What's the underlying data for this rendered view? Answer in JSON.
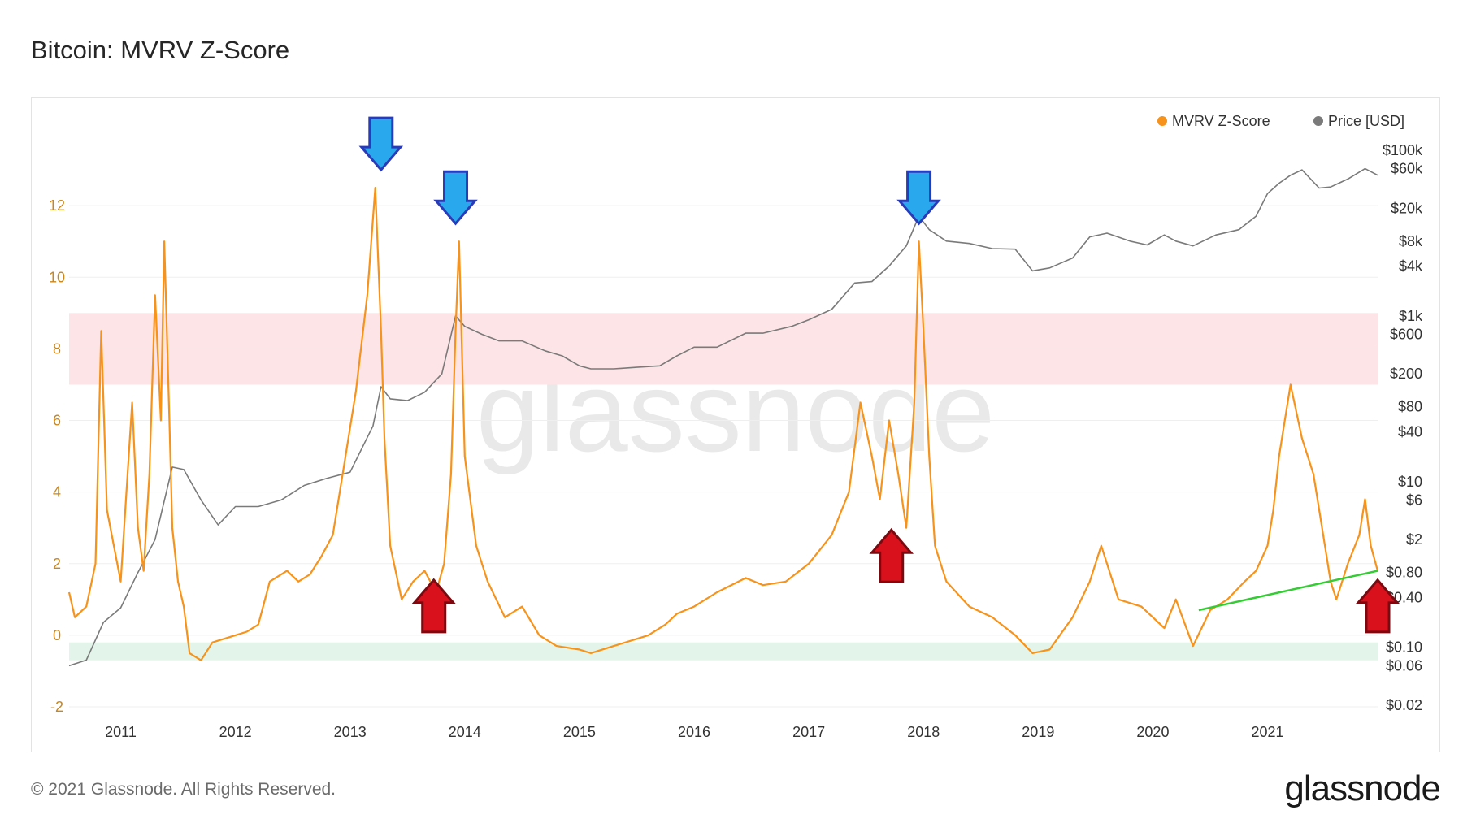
{
  "title": "Bitcoin: MVRV Z-Score",
  "footer": "© 2021 Glassnode. All Rights Reserved.",
  "brand": "glassnode",
  "watermark": "glassnode",
  "colors": {
    "mvrv": "#f7931a",
    "price": "#7a7a7a",
    "trend": "#33cc33",
    "top_zone": "#fde4e6",
    "bottom_zone": "#e3f5ea",
    "arrow_down": "#2aa8ee",
    "arrow_up": "#d9111d"
  },
  "chart_data": {
    "type": "line",
    "legend": {
      "placement": "top-right",
      "items": [
        {
          "label": "MVRV Z-Score",
          "color": "#f7931a"
        },
        {
          "label": "Price [USD]",
          "color": "#7a7a7a"
        }
      ]
    },
    "x_ticks": [
      "2011",
      "2012",
      "2013",
      "2014",
      "2015",
      "2016",
      "2017",
      "2018",
      "2019",
      "2020",
      "2021"
    ],
    "x_range": [
      2010.55,
      2021.96
    ],
    "y_left": {
      "ticks": [
        "-2",
        "0",
        "2",
        "4",
        "6",
        "8",
        "10",
        "12"
      ],
      "ylim": [
        -2,
        14
      ]
    },
    "y_right": {
      "scale": "log",
      "ticks": [
        {
          "label": "$100k",
          "value": 100000
        },
        {
          "label": "$60k",
          "value": 60000
        },
        {
          "label": "$20k",
          "value": 20000
        },
        {
          "label": "$8k",
          "value": 8000
        },
        {
          "label": "$4k",
          "value": 4000
        },
        {
          "label": "$1k",
          "value": 1000
        },
        {
          "label": "$600",
          "value": 600
        },
        {
          "label": "$200",
          "value": 200
        },
        {
          "label": "$80",
          "value": 80
        },
        {
          "label": "$40",
          "value": 40
        },
        {
          "label": "$10",
          "value": 10
        },
        {
          "label": "$6",
          "value": 6
        },
        {
          "label": "$2",
          "value": 2
        },
        {
          "label": "$0.80",
          "value": 0.8
        },
        {
          "label": "$0.40",
          "value": 0.4
        },
        {
          "label": "$0.10",
          "value": 0.1
        },
        {
          "label": "$0.06",
          "value": 0.06
        },
        {
          "label": "$0.02",
          "value": 0.02
        }
      ]
    },
    "zones": [
      {
        "name": "top",
        "y": [
          7,
          9
        ]
      },
      {
        "name": "bottom",
        "y": [
          -0.7,
          -0.2
        ]
      }
    ],
    "series": [
      {
        "name": "MVRV Z-Score",
        "axis": "left",
        "x": [
          2010.55,
          2010.6,
          2010.7,
          2010.78,
          2010.83,
          2010.88,
          2011.0,
          2011.1,
          2011.15,
          2011.2,
          2011.25,
          2011.3,
          2011.35,
          2011.38,
          2011.42,
          2011.45,
          2011.5,
          2011.55,
          2011.6,
          2011.7,
          2011.8,
          2011.9,
          2012.0,
          2012.1,
          2012.2,
          2012.3,
          2012.45,
          2012.55,
          2012.65,
          2012.75,
          2012.85,
          2012.95,
          2013.05,
          2013.15,
          2013.22,
          2013.27,
          2013.3,
          2013.35,
          2013.45,
          2013.55,
          2013.65,
          2013.75,
          2013.82,
          2013.88,
          2013.92,
          2013.95,
          2014.0,
          2014.1,
          2014.2,
          2014.35,
          2014.5,
          2014.65,
          2014.8,
          2015.0,
          2015.1,
          2015.3,
          2015.6,
          2015.75,
          2015.85,
          2016.0,
          2016.2,
          2016.45,
          2016.6,
          2016.8,
          2017.0,
          2017.2,
          2017.35,
          2017.45,
          2017.55,
          2017.62,
          2017.7,
          2017.78,
          2017.85,
          2017.92,
          2017.96,
          2018.0,
          2018.05,
          2018.1,
          2018.2,
          2018.4,
          2018.6,
          2018.8,
          2018.95,
          2019.1,
          2019.3,
          2019.45,
          2019.55,
          2019.7,
          2019.9,
          2020.0,
          2020.1,
          2020.2,
          2020.35,
          2020.5,
          2020.65,
          2020.8,
          2020.9,
          2021.0,
          2021.05,
          2021.1,
          2021.2,
          2021.3,
          2021.4,
          2021.5,
          2021.55,
          2021.6,
          2021.7,
          2021.8,
          2021.85,
          2021.9,
          2021.96
        ],
        "y": [
          1.2,
          0.5,
          0.8,
          2.0,
          8.5,
          3.5,
          1.5,
          6.5,
          3.0,
          1.8,
          4.5,
          9.5,
          6.0,
          11.0,
          6.5,
          3.0,
          1.5,
          0.8,
          -0.5,
          -0.7,
          -0.2,
          -0.1,
          0.0,
          0.1,
          0.3,
          1.5,
          1.8,
          1.5,
          1.7,
          2.2,
          2.8,
          4.8,
          6.8,
          9.5,
          12.5,
          8.5,
          5.5,
          2.5,
          1.0,
          1.5,
          1.8,
          1.2,
          2.0,
          4.5,
          8.5,
          11.0,
          5.0,
          2.5,
          1.5,
          0.5,
          0.8,
          0.0,
          -0.3,
          -0.4,
          -0.5,
          -0.3,
          0.0,
          0.3,
          0.6,
          0.8,
          1.2,
          1.6,
          1.4,
          1.5,
          2.0,
          2.8,
          4.0,
          6.5,
          5.0,
          3.8,
          6.0,
          4.5,
          3.0,
          6.5,
          11.0,
          8.5,
          5.0,
          2.5,
          1.5,
          0.8,
          0.5,
          0.0,
          -0.5,
          -0.4,
          0.5,
          1.5,
          2.5,
          1.0,
          0.8,
          0.5,
          0.2,
          1.0,
          -0.3,
          0.7,
          1.0,
          1.5,
          1.8,
          2.5,
          3.5,
          5.0,
          7.0,
          5.5,
          4.5,
          2.5,
          1.5,
          1.0,
          2.0,
          2.8,
          3.8,
          2.5,
          1.8
        ]
      },
      {
        "name": "Price [USD]",
        "axis": "right",
        "x": [
          2010.55,
          2010.7,
          2010.85,
          2011.0,
          2011.15,
          2011.3,
          2011.45,
          2011.55,
          2011.7,
          2011.85,
          2012.0,
          2012.2,
          2012.4,
          2012.6,
          2012.8,
          2013.0,
          2013.2,
          2013.27,
          2013.35,
          2013.5,
          2013.65,
          2013.8,
          2013.92,
          2014.0,
          2014.15,
          2014.3,
          2014.5,
          2014.7,
          2014.85,
          2015.0,
          2015.1,
          2015.3,
          2015.5,
          2015.7,
          2015.85,
          2016.0,
          2016.2,
          2016.45,
          2016.6,
          2016.85,
          2017.0,
          2017.2,
          2017.4,
          2017.55,
          2017.7,
          2017.85,
          2017.96,
          2018.05,
          2018.2,
          2018.4,
          2018.6,
          2018.8,
          2018.95,
          2019.1,
          2019.3,
          2019.45,
          2019.6,
          2019.8,
          2019.95,
          2020.1,
          2020.2,
          2020.35,
          2020.55,
          2020.75,
          2020.9,
          2021.0,
          2021.1,
          2021.2,
          2021.3,
          2021.45,
          2021.55,
          2021.7,
          2021.85,
          2021.96
        ],
        "y": [
          0.06,
          0.07,
          0.2,
          0.3,
          0.8,
          2.0,
          15,
          14,
          6,
          3,
          5,
          5,
          6,
          9,
          11,
          13,
          47,
          140,
          100,
          95,
          120,
          200,
          1000,
          750,
          600,
          500,
          500,
          380,
          330,
          250,
          230,
          230,
          240,
          250,
          330,
          420,
          420,
          620,
          620,
          750,
          900,
          1200,
          2500,
          2600,
          4000,
          7000,
          16000,
          11000,
          8000,
          7500,
          6500,
          6400,
          3500,
          3800,
          5000,
          9000,
          10000,
          8000,
          7200,
          9500,
          8000,
          7000,
          9500,
          11000,
          16000,
          30000,
          40000,
          50000,
          58000,
          35000,
          36000,
          45000,
          60000,
          50000
        ]
      }
    ],
    "trend_line": {
      "x": [
        2020.4,
        2021.96
      ],
      "y": [
        0.7,
        1.8
      ]
    },
    "annotations": {
      "down_arrows": [
        {
          "x": 2013.27,
          "y": 12.5
        },
        {
          "x": 2013.92,
          "y": 11.0
        },
        {
          "x": 2017.96,
          "y": 11.0
        }
      ],
      "up_arrows": [
        {
          "x": 2013.73,
          "y": 0.0
        },
        {
          "x": 2017.72,
          "y": 1.4
        },
        {
          "x": 2021.96,
          "y": 0.0
        }
      ]
    }
  }
}
